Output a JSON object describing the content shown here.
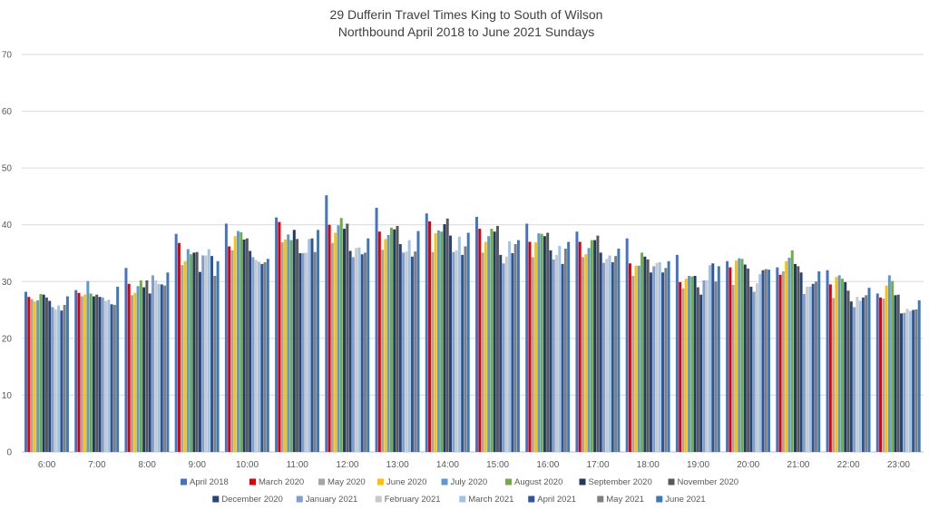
{
  "chart_data": {
    "type": "bar",
    "title": "29 Dufferin Travel Times King to South of Wilson",
    "subtitle": "Northbound April 2018 to June 2021 Sundays",
    "xlabel": "",
    "ylabel": "",
    "ylim": [
      0,
      70
    ],
    "yticks": [
      0,
      10,
      20,
      30,
      40,
      50,
      60,
      70
    ],
    "grid": true,
    "legend_position": "bottom",
    "categories": [
      "6:00",
      "7:00",
      "8:00",
      "9:00",
      "10:00",
      "11:00",
      "12:00",
      "13:00",
      "14:00",
      "15:00",
      "16:00",
      "17:00",
      "18:00",
      "19:00",
      "20:00",
      "21:00",
      "22:00",
      "23:00"
    ],
    "series": [
      {
        "name": "April 2018",
        "color": "#4472C4",
        "values": [
          28.2,
          28.5,
          32.4,
          38.4,
          40.2,
          41.3,
          45.2,
          43.0,
          42.0,
          41.4,
          40.2,
          38.8,
          37.6,
          34.7,
          33.6,
          32.5,
          32.0,
          27.9
        ]
      },
      {
        "name": "March 2020",
        "color": "#E00000",
        "values": [
          27.3,
          28.0,
          29.6,
          36.8,
          36.2,
          40.5,
          40.0,
          38.8,
          40.6,
          39.3,
          37.0,
          37.0,
          33.2,
          29.9,
          32.5,
          31.2,
          29.5,
          27.2
        ]
      },
      {
        "name": "May 2020",
        "color": "#A5A5A5",
        "values": [
          26.9,
          27.4,
          27.6,
          32.9,
          35.5,
          36.9,
          36.8,
          35.6,
          35.2,
          35.1,
          34.3,
          34.3,
          31.0,
          28.8,
          29.4,
          31.8,
          27.1,
          27.0
        ]
      },
      {
        "name": "June 2020",
        "color": "#FFC000",
        "values": [
          26.5,
          27.7,
          28.0,
          33.6,
          38.0,
          37.4,
          38.6,
          37.5,
          38.5,
          37.0,
          36.9,
          34.8,
          32.8,
          30.5,
          33.7,
          33.6,
          30.8,
          29.3
        ]
      },
      {
        "name": "July 2020",
        "color": "#5B9BD5",
        "values": [
          26.7,
          30.1,
          29.2,
          35.7,
          38.9,
          38.3,
          39.9,
          38.2,
          39.0,
          38.0,
          38.5,
          35.9,
          32.8,
          31.0,
          34.1,
          34.2,
          31.1,
          31.1
        ]
      },
      {
        "name": "August 2020",
        "color": "#70AD47",
        "values": [
          27.8,
          27.9,
          30.2,
          34.8,
          38.7,
          37.3,
          41.2,
          39.5,
          38.8,
          39.3,
          38.4,
          37.3,
          35.1,
          30.9,
          34.0,
          35.5,
          30.5,
          30.1
        ]
      },
      {
        "name": "September 2020",
        "color": "#203864",
        "values": [
          27.7,
          27.4,
          29.0,
          35.1,
          37.4,
          39.1,
          39.3,
          39.2,
          40.1,
          38.8,
          38.0,
          37.3,
          34.4,
          31.0,
          33.0,
          33.1,
          29.9,
          27.6
        ]
      },
      {
        "name": "November 2020",
        "color": "#595959",
        "values": [
          27.2,
          27.7,
          30.2,
          35.2,
          37.6,
          37.5,
          40.2,
          39.8,
          41.1,
          39.8,
          38.6,
          38.1,
          33.9,
          29.0,
          32.3,
          32.7,
          28.4,
          27.7
        ]
      },
      {
        "name": "December 2020",
        "color": "#264478",
        "values": [
          26.6,
          27.3,
          27.9,
          31.7,
          35.4,
          35.0,
          35.4,
          36.6,
          38.1,
          34.7,
          35.5,
          35.1,
          31.6,
          27.7,
          29.1,
          31.6,
          26.5,
          24.4
        ]
      },
      {
        "name": "January 2021",
        "color": "#7F9FD0",
        "values": [
          25.5,
          27.2,
          31.1,
          34.6,
          34.3,
          35.0,
          34.3,
          35.1,
          35.2,
          33.2,
          33.9,
          33.3,
          32.7,
          30.2,
          28.2,
          27.8,
          25.5,
          24.5
        ]
      },
      {
        "name": "February 2021",
        "color": "#C9C9C9",
        "values": [
          25.1,
          26.6,
          30.2,
          34.6,
          33.8,
          35.1,
          35.9,
          35.3,
          35.5,
          34.4,
          34.7,
          34.0,
          33.3,
          30.2,
          29.7,
          29.1,
          27.3,
          25.2
        ]
      },
      {
        "name": "March 2021",
        "color": "#9DC3E6",
        "values": [
          25.8,
          26.8,
          29.6,
          35.7,
          33.5,
          37.5,
          36.0,
          37.3,
          37.9,
          37.1,
          36.3,
          34.6,
          33.4,
          32.9,
          31.3,
          29.1,
          26.6,
          24.8
        ]
      },
      {
        "name": "April 2021",
        "color": "#2F5597",
        "values": [
          24.9,
          26.0,
          29.5,
          34.5,
          33.1,
          37.6,
          34.8,
          34.4,
          34.7,
          35.0,
          33.1,
          33.4,
          31.6,
          33.2,
          32.0,
          29.6,
          27.2,
          25.0
        ]
      },
      {
        "name": "May 2021",
        "color": "#7F7F7F",
        "values": [
          25.9,
          25.9,
          29.3,
          31.0,
          33.4,
          35.2,
          35.1,
          35.3,
          36.2,
          36.6,
          35.8,
          34.5,
          32.4,
          30.0,
          32.2,
          30.0,
          27.6,
          25.1
        ]
      },
      {
        "name": "June 2021",
        "color": "#3B79B8",
        "values": [
          27.4,
          29.1,
          31.6,
          33.6,
          34.0,
          39.1,
          37.6,
          38.9,
          38.6,
          37.3,
          37.0,
          35.8,
          33.6,
          32.7,
          32.1,
          31.8,
          28.9,
          26.7
        ]
      }
    ]
  }
}
